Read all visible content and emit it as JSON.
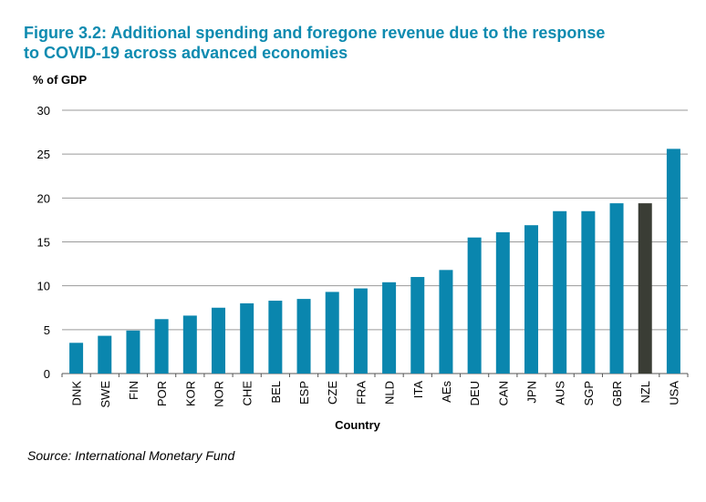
{
  "title_lines": [
    "Figure 3.2: Additional spending and foregone revenue due to the response",
    "to COVID-19 across advanced economies"
  ],
  "source": "Source: International Monetary Fund",
  "colors": {
    "bar": "#0a86ae",
    "highlight": "#3a3d35",
    "grid": "#9a9a9a",
    "title": "#0e8bb0"
  },
  "chart_data": {
    "type": "bar",
    "title": "Figure 3.2: Additional spending and foregone revenue due to the response to COVID-19 across advanced economies",
    "xlabel": "Country",
    "ylabel": "% of GDP",
    "ylim": [
      0,
      30
    ],
    "yticks": [
      0,
      5,
      10,
      15,
      20,
      25,
      30
    ],
    "grid": true,
    "categories": [
      "DNK",
      "SWE",
      "FIN",
      "POR",
      "KOR",
      "NOR",
      "CHE",
      "BEL",
      "ESP",
      "CZE",
      "FRA",
      "NLD",
      "ITA",
      "AEs",
      "DEU",
      "CAN",
      "JPN",
      "AUS",
      "SGP",
      "GBR",
      "NZL",
      "USA"
    ],
    "values": [
      3.5,
      4.3,
      4.9,
      6.2,
      6.6,
      7.5,
      8.0,
      8.3,
      8.5,
      9.3,
      9.7,
      10.4,
      11.0,
      11.8,
      15.5,
      16.1,
      16.9,
      18.5,
      18.5,
      19.4,
      19.4,
      25.6
    ],
    "highlight": "NZL"
  }
}
